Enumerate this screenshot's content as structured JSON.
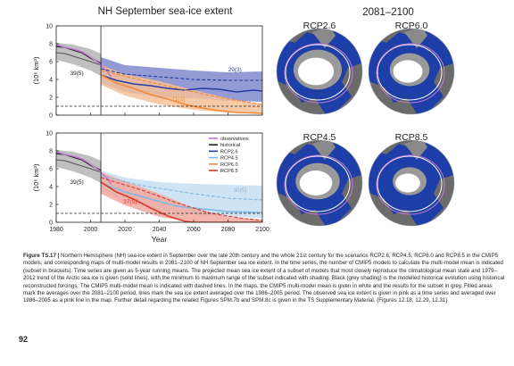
{
  "titles": {
    "timeseries": "NH September sea-ice extent",
    "maps": "2081–2100"
  },
  "maps": [
    {
      "label": "RCP2.6"
    },
    {
      "label": "RCP6.0"
    },
    {
      "label": "RCP4.5"
    },
    {
      "label": "RCP8.5"
    }
  ],
  "colors": {
    "observations": "#c07bd0",
    "historical": "#222222",
    "rcp26": "#2a3da0",
    "rcp45": "#7fb8e3",
    "rcp60": "#f08a3c",
    "rcp85": "#d63a2a",
    "hist_shade": "#b5b5b5",
    "rcp26_shade": "#8088cc",
    "rcp45_shade": "#c6def2",
    "rcp60_shade": "#f5bf98",
    "rcp85_shade": "#f2a89e",
    "ocean": "#1f3fa8",
    "land": "#6b6b6b",
    "ice_mean": "#9a9a9a",
    "ice_subset": "#ffffff"
  },
  "chart_data": [
    {
      "type": "line",
      "panel": "top",
      "ylabel": "(10⁶ km²)",
      "xlim": [
        1980,
        2100
      ],
      "ylim": [
        0,
        10
      ],
      "x_ticks": [
        1980,
        2000,
        2020,
        2040,
        2060,
        2080,
        2100
      ],
      "y_ticks": [
        0,
        2,
        4,
        6,
        8,
        10
      ],
      "annotations": [
        {
          "text": "39(5)",
          "x": 1992,
          "y": 4.5
        },
        {
          "text": "29(3)",
          "x": 2084,
          "y": 4.9
        },
        {
          "text": "21(2)",
          "x": 2051,
          "y": 1.6
        }
      ],
      "series": [
        {
          "key": "historical_shade",
          "x": [
            1980,
            1990,
            2000,
            2006
          ],
          "lo": [
            6.2,
            5.7,
            5.0,
            4.4
          ],
          "hi": [
            8.1,
            7.9,
            7.4,
            6.9
          ]
        },
        {
          "key": "historical_subset",
          "x": [
            1980,
            1985,
            1990,
            1995,
            2000,
            2006
          ],
          "y": [
            7.7,
            7.6,
            7.3,
            7.0,
            6.4,
            5.8
          ]
        },
        {
          "key": "historical_mean",
          "x": [
            1980,
            1985,
            1990,
            1995,
            2000,
            2006
          ],
          "y": [
            7.0,
            6.9,
            6.6,
            6.3,
            6.0,
            5.6
          ]
        },
        {
          "key": "observations",
          "x": [
            1980,
            1985,
            1990,
            1995,
            2000,
            2005,
            2010,
            2012
          ],
          "y": [
            7.9,
            7.6,
            7.4,
            7.1,
            6.5,
            5.8,
            4.8,
            4.3
          ]
        },
        {
          "key": "rcp26_shade",
          "x": [
            2006,
            2020,
            2040,
            2060,
            2080,
            2100
          ],
          "lo": [
            3.6,
            2.6,
            2.0,
            1.9,
            1.6,
            1.5
          ],
          "hi": [
            6.5,
            5.6,
            5.3,
            5.0,
            4.8,
            4.9
          ]
        },
        {
          "key": "rcp26_mean",
          "x": [
            2006,
            2020,
            2040,
            2060,
            2080,
            2100
          ],
          "y": [
            5.2,
            4.6,
            4.3,
            4.0,
            3.9,
            3.9
          ],
          "dashed": true
        },
        {
          "key": "rcp26_subset",
          "x": [
            2006,
            2015,
            2025,
            2035,
            2045,
            2055,
            2065,
            2075,
            2085,
            2095,
            2100
          ],
          "y": [
            4.5,
            3.9,
            3.5,
            3.3,
            3.0,
            2.8,
            3.0,
            2.9,
            2.6,
            2.8,
            2.7
          ]
        },
        {
          "key": "rcp60_shade",
          "x": [
            2006,
            2020,
            2040,
            2060,
            2080,
            2100
          ],
          "lo": [
            3.4,
            2.2,
            1.2,
            0.6,
            0.3,
            0.2
          ],
          "hi": [
            5.6,
            4.6,
            3.8,
            2.8,
            1.9,
            1.2
          ]
        },
        {
          "key": "rcp60_mean",
          "x": [
            2006,
            2030,
            2060,
            2080,
            2100
          ],
          "y": [
            5.0,
            3.9,
            2.6,
            1.8,
            1.2
          ],
          "dashed": true
        },
        {
          "key": "rcp60_subset",
          "x": [
            2006,
            2015,
            2025,
            2035,
            2045,
            2055,
            2065,
            2075,
            2085,
            2100
          ],
          "y": [
            4.5,
            3.6,
            3.0,
            2.3,
            1.8,
            1.2,
            0.8,
            0.5,
            0.3,
            0.2
          ]
        },
        {
          "key": "threshold",
          "x": [
            1980,
            2100
          ],
          "y": [
            1.0,
            1.0
          ],
          "dashed": true
        }
      ]
    },
    {
      "type": "line",
      "panel": "bottom",
      "ylabel": "(10⁶ km²)",
      "xlabel": "Year",
      "xlim": [
        1980,
        2100
      ],
      "ylim": [
        0,
        10
      ],
      "x_ticks": [
        1980,
        2000,
        2020,
        2040,
        2060,
        2080,
        2100
      ],
      "y_ticks": [
        0,
        2,
        4,
        6,
        8,
        10
      ],
      "legend": {
        "placement": "top-right",
        "entries": [
          {
            "label": "observations",
            "key": "observations"
          },
          {
            "label": "historical",
            "key": "historical"
          },
          {
            "label": "RCP2.6",
            "key": "rcp26"
          },
          {
            "label": "RCP4.5",
            "key": "rcp45"
          },
          {
            "label": "RCP6.0",
            "key": "rcp60"
          },
          {
            "label": "RCP8.5",
            "key": "rcp85"
          }
        ]
      },
      "annotations": [
        {
          "text": "39(5)",
          "x": 1992,
          "y": 4.3
        },
        {
          "text": "37(5)",
          "x": 2023,
          "y": 2.1
        },
        {
          "text": "30(5)",
          "x": 2087,
          "y": 3.4
        }
      ],
      "series": [
        {
          "key": "historical_shade",
          "x": [
            1980,
            1990,
            2000,
            2006
          ],
          "lo": [
            6.2,
            5.7,
            5.0,
            4.4
          ],
          "hi": [
            8.1,
            7.9,
            7.4,
            6.9
          ]
        },
        {
          "key": "historical_subset",
          "x": [
            1980,
            1985,
            1990,
            1995,
            2000,
            2006
          ],
          "y": [
            7.7,
            7.6,
            7.3,
            7.0,
            6.4,
            5.8
          ]
        },
        {
          "key": "historical_mean",
          "x": [
            1980,
            1985,
            1990,
            1995,
            2000,
            2006
          ],
          "y": [
            7.0,
            6.9,
            6.6,
            6.3,
            6.0,
            5.6
          ]
        },
        {
          "key": "observations",
          "x": [
            1980,
            1985,
            1990,
            1995,
            2000,
            2005,
            2010,
            2012
          ],
          "y": [
            7.9,
            7.6,
            7.4,
            7.1,
            6.5,
            5.8,
            4.8,
            4.3
          ]
        },
        {
          "key": "rcp45_shade",
          "x": [
            2006,
            2020,
            2040,
            2060,
            2080,
            2100
          ],
          "lo": [
            3.5,
            2.3,
            1.4,
            0.9,
            0.6,
            0.5
          ],
          "hi": [
            5.8,
            5.0,
            4.5,
            4.3,
            4.2,
            4.1
          ]
        },
        {
          "key": "rcp45_mean",
          "x": [
            2006,
            2030,
            2060,
            2080,
            2100
          ],
          "y": [
            5.2,
            4.1,
            3.2,
            2.7,
            2.5
          ],
          "dashed": true
        },
        {
          "key": "rcp45_subset",
          "x": [
            2006,
            2020,
            2035,
            2050,
            2065,
            2080,
            2100
          ],
          "y": [
            4.4,
            3.4,
            2.6,
            1.8,
            1.5,
            1.2,
            1.1
          ]
        },
        {
          "key": "rcp85_shade",
          "x": [
            2006,
            2020,
            2040,
            2060,
            2080,
            2100
          ],
          "lo": [
            3.2,
            1.9,
            0.6,
            0.0,
            0.0,
            0.0
          ],
          "hi": [
            5.6,
            4.6,
            3.2,
            1.6,
            0.6,
            0.3
          ]
        },
        {
          "key": "rcp85_mean",
          "x": [
            2006,
            2030,
            2050,
            2070,
            2090,
            2100
          ],
          "y": [
            5.0,
            3.6,
            2.2,
            1.0,
            0.4,
            0.2
          ],
          "dashed": true
        },
        {
          "key": "rcp85_subset",
          "x": [
            2006,
            2015,
            2025,
            2035,
            2045,
            2055,
            2060,
            2100
          ],
          "y": [
            4.5,
            3.4,
            2.6,
            1.6,
            0.7,
            0.1,
            0.0,
            0.0
          ]
        },
        {
          "key": "threshold",
          "x": [
            1980,
            2100
          ],
          "y": [
            1.0,
            1.0
          ],
          "dashed": true
        }
      ]
    }
  ],
  "caption": {
    "label": "Figure TS.17 |",
    "text": " Northern Hemisphere (NH) sea-ice extent in September over the late 20th century and the whole 21st century for the scenarios RCP2.6, RCP4.5, RCP6.0 and RCP8.5 in the CMIP5 models, and corresponding maps of multi-model results in 2081–2100 of NH September sea ice extent. In the time series, the number of CMIP5 models to calculate the multi-model mean is indicated (subset in brackets). Time series are given as 5-year running means. The projected mean sea ice extent of a subset of models that most closely reproduce the climatological mean state and 1979–2012 trend of the Arctic sea ice is given (solid lines), with the minimum to maximum range of the subset indicated with shading. Black (grey shading) is the modelled historical evolution using historical reconstructed forcings. The CMIP5 multi-model mean is indicated with dashed lines. In the maps, the CMIP5 multi-model mean is given in white and the results for the subset in grey. Filled areas mark the averages over the 2081–2100 period, lines mark the sea ice extent averaged over the 1986–2005 period. The observed sea ice extent is given in pink as a time series and averaged over 1986–2005 as a pink line in the map. Further detail regarding the related Figures SPM.7b and SPM.8c is given in the TS Supplementary Material. {Figures 12.18, 12.29, 12.31}"
  },
  "page_number": "92"
}
